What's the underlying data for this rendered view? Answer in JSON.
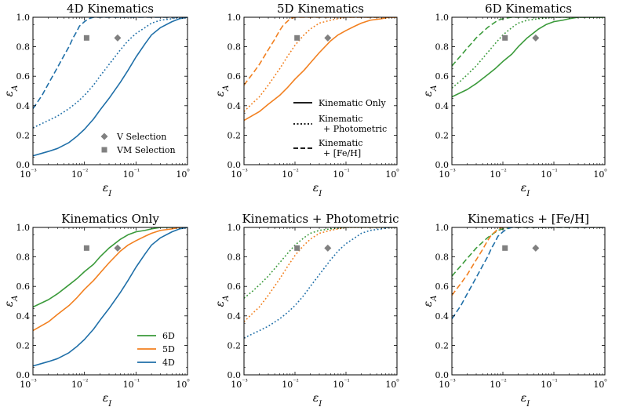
{
  "figure": {
    "background": "#ffffff"
  },
  "colors": {
    "4D": "#1f6fa8",
    "5D": "#f28020",
    "6D": "#3a9a3a",
    "marker": "#808080"
  },
  "chart_data": [
    {
      "type": "line",
      "title": "4D Kinematics",
      "xlabel": "ε_I",
      "ylabel": "ε_A",
      "xscale": "log",
      "xlim": [
        0.001,
        1
      ],
      "ylim": [
        0,
        1
      ],
      "xticks": [
        "10⁻³",
        "10⁻²",
        "10⁻¹",
        "10⁰"
      ],
      "yticks": [
        "0.0",
        "0.2",
        "0.4",
        "0.6",
        "0.8",
        "1.0"
      ],
      "series": [
        {
          "name": "4D Kinematic Only",
          "color_key": "4D",
          "style": "solid",
          "x": [
            0.001,
            0.002,
            0.003,
            0.005,
            0.007,
            0.01,
            0.015,
            0.02,
            0.03,
            0.05,
            0.07,
            0.1,
            0.15,
            0.2,
            0.3,
            0.5,
            0.7,
            1.0
          ],
          "y": [
            0.06,
            0.09,
            0.11,
            0.15,
            0.19,
            0.24,
            0.31,
            0.37,
            0.45,
            0.56,
            0.64,
            0.73,
            0.82,
            0.88,
            0.93,
            0.97,
            0.99,
            1.0
          ]
        },
        {
          "name": "4D Kinematic + Photometric",
          "color_key": "4D",
          "style": "dotted",
          "x": [
            0.001,
            0.002,
            0.003,
            0.005,
            0.007,
            0.01,
            0.015,
            0.02,
            0.03,
            0.05,
            0.07,
            0.1,
            0.15,
            0.2,
            0.3,
            0.5,
            0.7,
            1.0
          ],
          "y": [
            0.25,
            0.3,
            0.33,
            0.38,
            0.42,
            0.47,
            0.54,
            0.6,
            0.68,
            0.78,
            0.84,
            0.89,
            0.93,
            0.96,
            0.98,
            0.99,
            1.0,
            1.0
          ]
        },
        {
          "name": "4D Kinematic + [Fe/H]",
          "color_key": "4D",
          "style": "dashed",
          "x": [
            0.001,
            0.0015,
            0.002,
            0.003,
            0.004,
            0.005,
            0.006,
            0.007,
            0.008,
            0.01,
            0.012,
            0.015,
            0.02,
            0.03,
            0.05,
            0.1,
            1.0
          ],
          "y": [
            0.38,
            0.47,
            0.55,
            0.66,
            0.74,
            0.8,
            0.86,
            0.9,
            0.94,
            0.97,
            0.99,
            1.0,
            1.0,
            1.0,
            1.0,
            1.0,
            1.0
          ]
        }
      ],
      "markers": [
        {
          "name": "V Selection",
          "shape": "diamond",
          "x": 0.044,
          "y": 0.86
        },
        {
          "name": "VM Selection",
          "shape": "square",
          "x": 0.011,
          "y": 0.86
        }
      ],
      "legend": {
        "location": "lower-right",
        "entries": [
          "V Selection",
          "VM Selection"
        ]
      }
    },
    {
      "type": "line",
      "title": "5D Kinematics",
      "xlabel": "ε_I",
      "ylabel": "ε_A",
      "xscale": "log",
      "xlim": [
        0.001,
        1
      ],
      "ylim": [
        0,
        1
      ],
      "xticks": [
        "10⁻³",
        "10⁻²",
        "10⁻¹",
        "10⁰"
      ],
      "yticks": [
        "0.0",
        "0.2",
        "0.4",
        "0.6",
        "0.8",
        "1.0"
      ],
      "series": [
        {
          "name": "5D Kinematic Only",
          "color_key": "5D",
          "style": "solid",
          "x": [
            0.001,
            0.002,
            0.003,
            0.005,
            0.007,
            0.01,
            0.015,
            0.02,
            0.03,
            0.05,
            0.07,
            0.1,
            0.15,
            0.2,
            0.3,
            0.5,
            0.7,
            1.0
          ],
          "y": [
            0.3,
            0.36,
            0.41,
            0.47,
            0.52,
            0.58,
            0.64,
            0.69,
            0.76,
            0.84,
            0.88,
            0.91,
            0.94,
            0.96,
            0.98,
            0.99,
            1.0,
            1.0
          ]
        },
        {
          "name": "5D Kinematic + Photometric",
          "color_key": "5D",
          "style": "dotted",
          "x": [
            0.001,
            0.0015,
            0.002,
            0.003,
            0.005,
            0.007,
            0.01,
            0.015,
            0.02,
            0.03,
            0.05,
            0.07,
            0.1,
            0.2,
            0.5,
            1.0
          ],
          "y": [
            0.36,
            0.42,
            0.46,
            0.54,
            0.65,
            0.73,
            0.81,
            0.88,
            0.92,
            0.96,
            0.98,
            0.99,
            1.0,
            1.0,
            1.0,
            1.0
          ]
        },
        {
          "name": "5D Kinematic + [Fe/H]",
          "color_key": "5D",
          "style": "dashed",
          "x": [
            0.001,
            0.0015,
            0.002,
            0.003,
            0.004,
            0.005,
            0.006,
            0.007,
            0.008,
            0.01,
            0.015,
            0.02,
            0.05,
            1.0
          ],
          "y": [
            0.54,
            0.62,
            0.68,
            0.78,
            0.85,
            0.91,
            0.95,
            0.97,
            0.99,
            1.0,
            1.0,
            1.0,
            1.0,
            1.0
          ]
        }
      ],
      "markers": [
        {
          "name": "V Selection",
          "shape": "diamond",
          "x": 0.044,
          "y": 0.86
        },
        {
          "name": "VM Selection",
          "shape": "square",
          "x": 0.011,
          "y": 0.86
        }
      ],
      "legend": {
        "location": "lower-right",
        "entries": [
          {
            "style": "solid",
            "lines": [
              "Kinematic Only"
            ]
          },
          {
            "style": "dotted",
            "lines": [
              "Kinematic",
              "+ Photometric"
            ]
          },
          {
            "style": "dashed",
            "lines": [
              "Kinematic",
              "+ [Fe/H]"
            ]
          }
        ]
      }
    },
    {
      "type": "line",
      "title": "6D Kinematics",
      "xlabel": "ε_I",
      "ylabel": "ε_A",
      "xscale": "log",
      "xlim": [
        0.001,
        1
      ],
      "ylim": [
        0,
        1
      ],
      "xticks": [
        "10⁻³",
        "10⁻²",
        "10⁻¹",
        "10⁰"
      ],
      "yticks": [
        "0.0",
        "0.2",
        "0.4",
        "0.6",
        "0.8",
        "1.0"
      ],
      "series": [
        {
          "name": "6D Kinematic Only",
          "color_key": "6D",
          "style": "solid",
          "x": [
            0.001,
            0.002,
            0.003,
            0.005,
            0.007,
            0.01,
            0.015,
            0.02,
            0.03,
            0.05,
            0.07,
            0.1,
            0.15,
            0.2,
            0.3,
            0.5,
            1.0
          ],
          "y": [
            0.46,
            0.51,
            0.55,
            0.61,
            0.65,
            0.7,
            0.75,
            0.8,
            0.86,
            0.92,
            0.95,
            0.97,
            0.98,
            0.99,
            1.0,
            1.0,
            1.0
          ]
        },
        {
          "name": "6D Kinematic + Photometric",
          "color_key": "6D",
          "style": "dotted",
          "x": [
            0.001,
            0.0015,
            0.002,
            0.003,
            0.005,
            0.007,
            0.01,
            0.015,
            0.02,
            0.03,
            0.05,
            0.1,
            1.0
          ],
          "y": [
            0.52,
            0.57,
            0.61,
            0.67,
            0.76,
            0.82,
            0.88,
            0.93,
            0.96,
            0.98,
            0.99,
            1.0,
            1.0
          ]
        },
        {
          "name": "6D Kinematic + [Fe/H]",
          "color_key": "6D",
          "style": "dashed",
          "x": [
            0.001,
            0.0015,
            0.002,
            0.003,
            0.004,
            0.005,
            0.006,
            0.008,
            0.01,
            0.015,
            0.02,
            0.05,
            1.0
          ],
          "y": [
            0.67,
            0.74,
            0.79,
            0.86,
            0.9,
            0.93,
            0.95,
            0.98,
            0.99,
            1.0,
            1.0,
            1.0,
            1.0
          ]
        }
      ],
      "markers": [
        {
          "name": "V Selection",
          "shape": "diamond",
          "x": 0.044,
          "y": 0.86
        },
        {
          "name": "VM Selection",
          "shape": "square",
          "x": 0.011,
          "y": 0.86
        }
      ]
    },
    {
      "type": "line",
      "title": "Kinematics Only",
      "xlabel": "ε_I",
      "ylabel": "ε_A",
      "xscale": "log",
      "xlim": [
        0.001,
        1
      ],
      "ylim": [
        0,
        1
      ],
      "xticks": [
        "10⁻³",
        "10⁻²",
        "10⁻¹",
        "10⁰"
      ],
      "yticks": [
        "0.0",
        "0.2",
        "0.4",
        "0.6",
        "0.8",
        "1.0"
      ],
      "series": [
        {
          "name": "6D",
          "color_key": "6D",
          "style": "solid",
          "x": [
            0.001,
            0.002,
            0.003,
            0.005,
            0.007,
            0.01,
            0.015,
            0.02,
            0.03,
            0.05,
            0.07,
            0.1,
            0.15,
            0.2,
            0.3,
            0.5,
            1.0
          ],
          "y": [
            0.46,
            0.51,
            0.55,
            0.61,
            0.65,
            0.7,
            0.75,
            0.8,
            0.86,
            0.92,
            0.95,
            0.97,
            0.98,
            0.99,
            1.0,
            1.0,
            1.0
          ]
        },
        {
          "name": "5D",
          "color_key": "5D",
          "style": "solid",
          "x": [
            0.001,
            0.002,
            0.003,
            0.005,
            0.007,
            0.01,
            0.015,
            0.02,
            0.03,
            0.05,
            0.07,
            0.1,
            0.15,
            0.2,
            0.3,
            0.5,
            0.7,
            1.0
          ],
          "y": [
            0.3,
            0.36,
            0.41,
            0.47,
            0.52,
            0.58,
            0.64,
            0.69,
            0.76,
            0.84,
            0.88,
            0.91,
            0.94,
            0.96,
            0.98,
            0.99,
            1.0,
            1.0
          ]
        },
        {
          "name": "4D",
          "color_key": "4D",
          "style": "solid",
          "x": [
            0.001,
            0.002,
            0.003,
            0.005,
            0.007,
            0.01,
            0.015,
            0.02,
            0.03,
            0.05,
            0.07,
            0.1,
            0.15,
            0.2,
            0.3,
            0.5,
            0.7,
            1.0
          ],
          "y": [
            0.06,
            0.09,
            0.11,
            0.15,
            0.19,
            0.24,
            0.31,
            0.37,
            0.45,
            0.56,
            0.64,
            0.73,
            0.82,
            0.88,
            0.93,
            0.97,
            0.99,
            1.0
          ]
        }
      ],
      "markers": [
        {
          "name": "V Selection",
          "shape": "diamond",
          "x": 0.044,
          "y": 0.86
        },
        {
          "name": "VM Selection",
          "shape": "square",
          "x": 0.011,
          "y": 0.86
        }
      ],
      "legend": {
        "location": "lower-right",
        "entries": [
          {
            "label": "6D",
            "color_key": "6D"
          },
          {
            "label": "5D",
            "color_key": "5D"
          },
          {
            "label": "4D",
            "color_key": "4D"
          }
        ]
      }
    },
    {
      "type": "line",
      "title": "Kinematics + Photometric",
      "xlabel": "ε_I",
      "ylabel": "ε_A",
      "xscale": "log",
      "xlim": [
        0.001,
        1
      ],
      "ylim": [
        0,
        1
      ],
      "xticks": [
        "10⁻³",
        "10⁻²",
        "10⁻¹",
        "10⁰"
      ],
      "yticks": [
        "0.0",
        "0.2",
        "0.4",
        "0.6",
        "0.8",
        "1.0"
      ],
      "series": [
        {
          "name": "6D",
          "color_key": "6D",
          "style": "dotted",
          "x": [
            0.001,
            0.0015,
            0.002,
            0.003,
            0.005,
            0.007,
            0.01,
            0.015,
            0.02,
            0.03,
            0.05,
            0.1,
            1.0
          ],
          "y": [
            0.52,
            0.57,
            0.61,
            0.67,
            0.76,
            0.82,
            0.88,
            0.93,
            0.96,
            0.98,
            0.99,
            1.0,
            1.0
          ]
        },
        {
          "name": "5D",
          "color_key": "5D",
          "style": "dotted",
          "x": [
            0.001,
            0.0015,
            0.002,
            0.003,
            0.005,
            0.007,
            0.01,
            0.015,
            0.02,
            0.03,
            0.05,
            0.07,
            0.1,
            0.2,
            0.5,
            1.0
          ],
          "y": [
            0.36,
            0.42,
            0.46,
            0.54,
            0.65,
            0.73,
            0.81,
            0.88,
            0.92,
            0.96,
            0.98,
            0.99,
            1.0,
            1.0,
            1.0,
            1.0
          ]
        },
        {
          "name": "4D",
          "color_key": "4D",
          "style": "dotted",
          "x": [
            0.001,
            0.002,
            0.003,
            0.005,
            0.007,
            0.01,
            0.015,
            0.02,
            0.03,
            0.05,
            0.07,
            0.1,
            0.15,
            0.2,
            0.3,
            0.5,
            0.7,
            1.0
          ],
          "y": [
            0.25,
            0.3,
            0.33,
            0.38,
            0.42,
            0.47,
            0.54,
            0.6,
            0.68,
            0.78,
            0.84,
            0.89,
            0.93,
            0.96,
            0.98,
            0.99,
            1.0,
            1.0
          ]
        }
      ],
      "markers": [
        {
          "name": "V Selection",
          "shape": "diamond",
          "x": 0.044,
          "y": 0.86
        },
        {
          "name": "VM Selection",
          "shape": "square",
          "x": 0.011,
          "y": 0.86
        }
      ]
    },
    {
      "type": "line",
      "title": "Kinematics + [Fe/H]",
      "xlabel": "ε_I",
      "ylabel": "ε_A",
      "xscale": "log",
      "xlim": [
        0.001,
        1
      ],
      "ylim": [
        0,
        1
      ],
      "xticks": [
        "10⁻³",
        "10⁻²",
        "10⁻¹",
        "10⁰"
      ],
      "yticks": [
        "0.0",
        "0.2",
        "0.4",
        "0.6",
        "0.8",
        "1.0"
      ],
      "series": [
        {
          "name": "6D",
          "color_key": "6D",
          "style": "dashed",
          "x": [
            0.001,
            0.0015,
            0.002,
            0.003,
            0.004,
            0.005,
            0.006,
            0.008,
            0.01,
            0.015,
            0.02,
            0.05,
            1.0
          ],
          "y": [
            0.67,
            0.74,
            0.79,
            0.86,
            0.9,
            0.93,
            0.95,
            0.98,
            0.99,
            1.0,
            1.0,
            1.0,
            1.0
          ]
        },
        {
          "name": "5D",
          "color_key": "5D",
          "style": "dashed",
          "x": [
            0.001,
            0.0015,
            0.002,
            0.003,
            0.004,
            0.005,
            0.006,
            0.007,
            0.008,
            0.01,
            0.015,
            0.02,
            0.05,
            1.0
          ],
          "y": [
            0.54,
            0.62,
            0.68,
            0.78,
            0.85,
            0.91,
            0.95,
            0.97,
            0.99,
            1.0,
            1.0,
            1.0,
            1.0,
            1.0
          ]
        },
        {
          "name": "4D",
          "color_key": "4D",
          "style": "dashed",
          "x": [
            0.001,
            0.0015,
            0.002,
            0.003,
            0.004,
            0.005,
            0.006,
            0.007,
            0.008,
            0.01,
            0.012,
            0.015,
            0.02,
            0.03,
            0.05,
            0.1,
            1.0
          ],
          "y": [
            0.38,
            0.47,
            0.55,
            0.66,
            0.74,
            0.8,
            0.86,
            0.9,
            0.94,
            0.97,
            0.99,
            1.0,
            1.0,
            1.0,
            1.0,
            1.0,
            1.0
          ]
        }
      ],
      "markers": [
        {
          "name": "V Selection",
          "shape": "diamond",
          "x": 0.044,
          "y": 0.86
        },
        {
          "name": "VM Selection",
          "shape": "square",
          "x": 0.011,
          "y": 0.86
        }
      ]
    }
  ]
}
